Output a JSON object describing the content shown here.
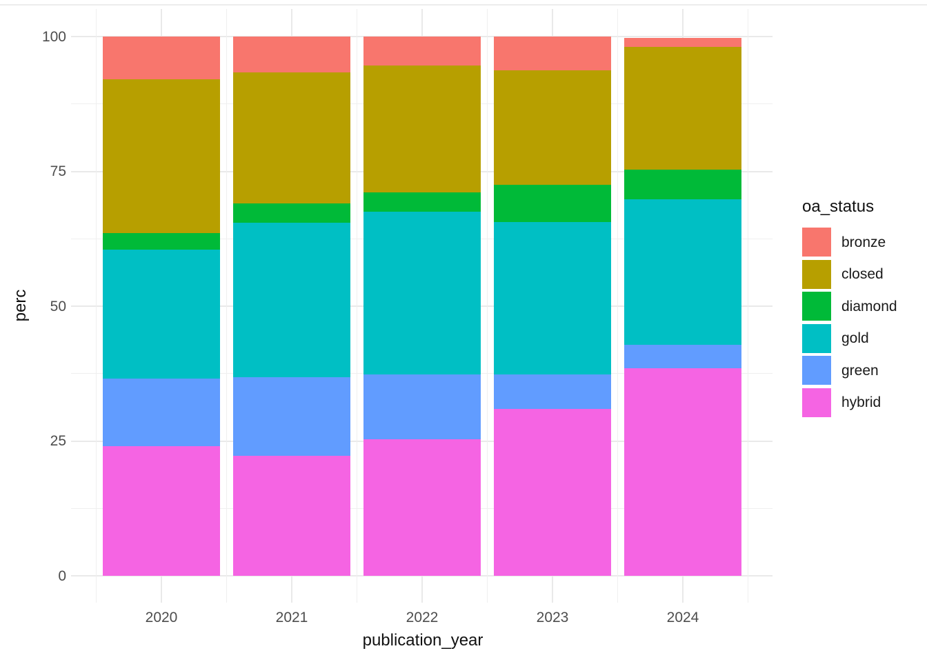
{
  "figure": {
    "background": "#ffffff"
  },
  "chart_data": {
    "type": "bar",
    "stacked": true,
    "normalized_percent": true,
    "title": "",
    "xlabel": "publication_year",
    "ylabel": "perc",
    "categories": [
      "2020",
      "2021",
      "2022",
      "2023",
      "2024"
    ],
    "stack_order_bottom_to_top": [
      "hybrid",
      "green",
      "gold",
      "diamond",
      "closed",
      "bronze"
    ],
    "series": [
      {
        "name": "hybrid",
        "color": "#F564E3",
        "values": [
          24.0,
          22.3,
          25.3,
          31.0,
          38.5
        ]
      },
      {
        "name": "green",
        "color": "#619CFF",
        "values": [
          12.6,
          14.5,
          12.0,
          6.3,
          4.4
        ]
      },
      {
        "name": "gold",
        "color": "#00BFC4",
        "values": [
          23.9,
          28.7,
          30.2,
          28.3,
          26.9
        ]
      },
      {
        "name": "diamond",
        "color": "#00BA38",
        "values": [
          3.1,
          3.6,
          3.6,
          6.9,
          5.5
        ]
      },
      {
        "name": "closed",
        "color": "#B79F00",
        "values": [
          28.5,
          24.2,
          23.5,
          21.2,
          22.8
        ]
      },
      {
        "name": "bronze",
        "color": "#F8766D",
        "values": [
          7.9,
          6.7,
          5.4,
          6.3,
          1.7
        ]
      }
    ],
    "bar_totals": [
      100.0,
      100.0,
      100.0,
      100.0,
      99.8
    ],
    "ylim": [
      0,
      100
    ],
    "y_ticks": [
      0,
      25,
      50,
      75,
      100
    ],
    "y_minor_ticks": [
      12.5,
      37.5,
      62.5,
      87.5
    ],
    "grid": true,
    "legend": {
      "title": "oa_status",
      "position": "right",
      "items": [
        "bronze",
        "closed",
        "diamond",
        "gold",
        "green",
        "hybrid"
      ]
    },
    "style": {
      "panel_background": "#ffffff",
      "gridline_major_color": "#e9e9e9",
      "gridline_minor_color": "#efefef",
      "tick_label_color": "#4d4d4d",
      "axis_title_color": "#111111",
      "legend_text_color": "#1a1a1a"
    }
  }
}
